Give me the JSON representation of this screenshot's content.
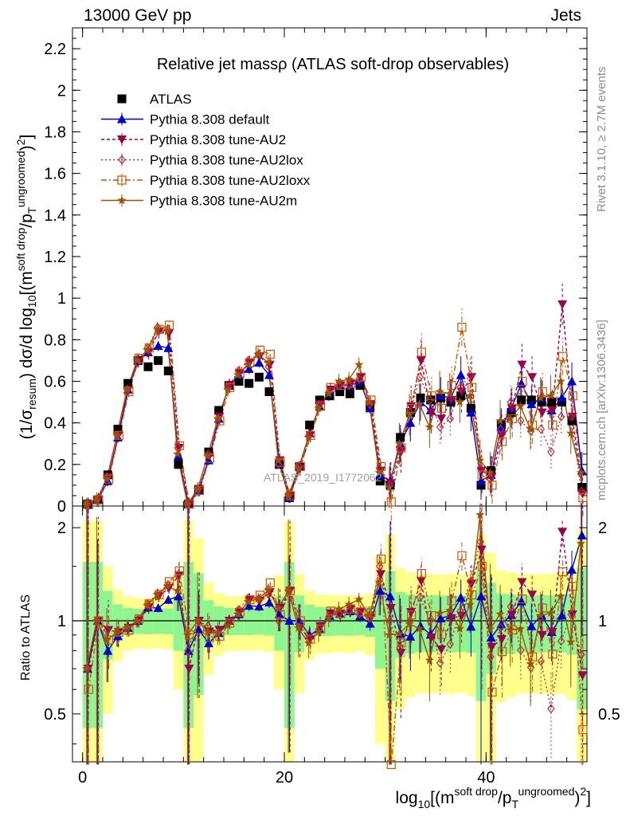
{
  "header": {
    "left": "13000 GeV pp",
    "right": "Jets"
  },
  "side_labels": {
    "rivet": "Rivet 3.1.10, ≥ 2.7M events",
    "site": "mcplots.cern.ch [arXiv:1306.3436]"
  },
  "watermark": "ATLAS_2019_I1772062",
  "chart_data": {
    "type": "line",
    "title": "Relative jet massρ (ATLAS soft-drop observables)",
    "xlabel": "log10[(m^soft drop/pT^ungroomed)^2]",
    "ylabel": "(1/σresum) dσ/d log10[(m^soft drop/pT^ungroomed)^2]",
    "ratio_ylabel": "Ratio to ATLAS",
    "xlim": [
      -1,
      50
    ],
    "ylim": [
      0,
      2.3
    ],
    "ratio_ylim": [
      0.35,
      2.35
    ],
    "ratio_scale": "log",
    "x_ticks": [
      "0",
      "20",
      "40"
    ],
    "y_ticks": [
      "0",
      "0.2",
      "0.4",
      "0.6",
      "0.8",
      "1",
      "1.2",
      "1.4",
      "1.6",
      "1.8",
      "2",
      "2.2"
    ],
    "ratio_ticks": [
      "0.5",
      "1",
      "2"
    ],
    "legend_position": "top-left",
    "series": [
      {
        "name": "ATLAS",
        "color": "#000000",
        "marker": "square",
        "values": [
          0.01,
          0.03,
          0.15,
          0.37,
          0.59,
          0.7,
          0.67,
          0.7,
          0.65,
          0.2,
          0.01,
          0.08,
          0.26,
          0.46,
          0.58,
          0.6,
          0.59,
          0.62,
          0.55,
          0.2,
          0.04,
          0.19,
          0.39,
          0.51,
          0.53,
          0.55,
          0.54,
          0.58,
          0.48,
          0.12,
          0.1,
          0.33,
          0.45,
          0.52,
          0.51,
          0.52,
          0.5,
          0.53,
          0.47,
          0.1,
          0.17,
          0.39,
          0.45,
          0.51,
          0.51,
          0.5,
          0.5,
          0.5,
          0.41,
          0.09
        ]
      },
      {
        "name": "Pythia 8.308 default",
        "color": "#0000cc",
        "marker": "triangle-up",
        "values": [
          0.007,
          0.03,
          0.12,
          0.33,
          0.56,
          0.7,
          0.74,
          0.77,
          0.76,
          0.24,
          0.008,
          0.075,
          0.22,
          0.42,
          0.58,
          0.63,
          0.66,
          0.69,
          0.63,
          0.21,
          0.04,
          0.19,
          0.35,
          0.48,
          0.55,
          0.58,
          0.58,
          0.6,
          0.47,
          0.15,
          0.12,
          0.3,
          0.4,
          0.5,
          0.46,
          0.53,
          0.52,
          0.63,
          0.45,
          0.12,
          0.15,
          0.38,
          0.47,
          0.59,
          0.49,
          0.52,
          0.46,
          0.52,
          0.6,
          0.17
        ]
      },
      {
        "name": "Pythia 8.308 tune-AU2",
        "color": "#99004d",
        "marker": "triangle-down",
        "values": [
          0.007,
          0.03,
          0.14,
          0.34,
          0.56,
          0.7,
          0.74,
          0.84,
          0.83,
          0.28,
          0.007,
          0.08,
          0.24,
          0.43,
          0.58,
          0.64,
          0.69,
          0.72,
          0.68,
          0.22,
          0.05,
          0.18,
          0.34,
          0.49,
          0.56,
          0.58,
          0.59,
          0.62,
          0.49,
          0.17,
          0.11,
          0.26,
          0.48,
          0.7,
          0.45,
          0.42,
          0.51,
          0.55,
          0.62,
          0.17,
          0.14,
          0.34,
          0.47,
          0.68,
          0.62,
          0.45,
          0.46,
          0.97,
          0.43,
          0.06
        ]
      },
      {
        "name": "Pythia 8.308 tune-AU2lox",
        "color": "#b33333",
        "marker": "diamond",
        "values": [
          0.007,
          0.03,
          0.14,
          0.34,
          0.56,
          0.69,
          0.76,
          0.86,
          0.85,
          0.28,
          0.008,
          0.08,
          0.25,
          0.42,
          0.57,
          0.65,
          0.7,
          0.73,
          0.67,
          0.2,
          0.05,
          0.19,
          0.34,
          0.48,
          0.55,
          0.58,
          0.58,
          0.61,
          0.49,
          0.18,
          0.1,
          0.27,
          0.45,
          0.62,
          0.51,
          0.38,
          0.42,
          0.57,
          0.63,
          0.18,
          0.13,
          0.37,
          0.5,
          0.41,
          0.36,
          0.37,
          0.26,
          0.43,
          0.43,
          0.07
        ]
      },
      {
        "name": "Pythia 8.308 tune-AU2loxx",
        "color": "#cc5500",
        "marker": "open-square",
        "values": [
          0.006,
          0.03,
          0.13,
          0.34,
          0.55,
          0.71,
          0.76,
          0.85,
          0.87,
          0.29,
          0.009,
          0.075,
          0.23,
          0.41,
          0.57,
          0.64,
          0.69,
          0.75,
          0.73,
          0.21,
          0.05,
          0.19,
          0.34,
          0.48,
          0.57,
          0.58,
          0.59,
          0.62,
          0.51,
          0.19,
          0.02,
          0.28,
          0.47,
          0.74,
          0.53,
          0.47,
          0.58,
          0.86,
          0.57,
          0.15,
          0.1,
          0.31,
          0.42,
          0.6,
          0.39,
          0.55,
          0.39,
          0.72,
          0.53,
          0.04
        ]
      },
      {
        "name": "Pythia 8.308 tune-AU2m",
        "color": "#9c5200",
        "marker": "star",
        "values": [
          0.007,
          0.03,
          0.13,
          0.34,
          0.56,
          0.7,
          0.75,
          0.85,
          0.84,
          0.25,
          0.009,
          0.08,
          0.24,
          0.42,
          0.56,
          0.63,
          0.68,
          0.73,
          0.69,
          0.22,
          0.05,
          0.18,
          0.33,
          0.47,
          0.54,
          0.6,
          0.61,
          0.68,
          0.5,
          0.16,
          0.09,
          0.3,
          0.44,
          0.49,
          0.38,
          0.55,
          0.54,
          0.5,
          0.53,
          0.22,
          0.16,
          0.41,
          0.42,
          0.48,
          0.37,
          0.52,
          0.53,
          0.6,
          0.35,
          0.16
        ]
      }
    ]
  }
}
